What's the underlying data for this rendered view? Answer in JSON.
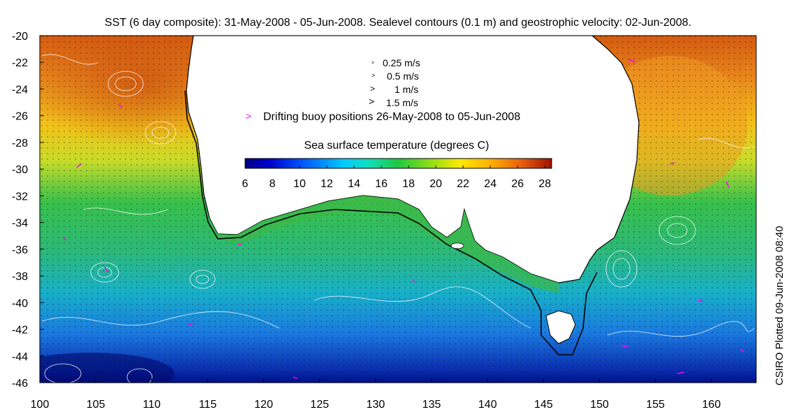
{
  "title": "SST (6 day composite): 31-May-2008 - 05-Jun-2008. Sealevel contours (0.1 m) and geostrophic velocity: 02-Jun-2008.",
  "credit": "CSIRO Plotted 09-Jun-2008 08:40",
  "legend": {
    "vectors": [
      {
        "label": "0.25 m/s"
      },
      {
        "label": "0.5 m/s"
      },
      {
        "label": "1 m/s"
      },
      {
        "label": "1.5 m/s"
      }
    ],
    "buoy_label": "Drifting buoy positions 26-May-2008 to 05-Jun-2008",
    "colorbar_title": "Sea surface temperature (degrees C)",
    "colorbar_ticks": [
      "6",
      "8",
      "10",
      "12",
      "14",
      "16",
      "18",
      "20",
      "22",
      "24",
      "26",
      "28"
    ]
  },
  "axes": {
    "x_ticks": [
      "100",
      "105",
      "110",
      "115",
      "120",
      "125",
      "130",
      "135",
      "140",
      "145",
      "150",
      "155",
      "160"
    ],
    "y_ticks": [
      "-20",
      "-22",
      "-24",
      "-26",
      "-28",
      "-30",
      "-32",
      "-34",
      "-36",
      "-38",
      "-40",
      "-42",
      "-44",
      "-46"
    ],
    "x_range": [
      100,
      164
    ],
    "y_range": [
      -46,
      -20
    ]
  },
  "colors": {
    "land": "#ffffff",
    "coast": "#000000",
    "buoy": "#ff00ff",
    "contour": "#ffffff",
    "colormap": [
      "#00007f",
      "#0000c8",
      "#0040ff",
      "#0090ff",
      "#00d8ff",
      "#10e0b0",
      "#20c840",
      "#60d020",
      "#b0e010",
      "#ffe000",
      "#ffa000",
      "#f06010",
      "#c02000",
      "#800000"
    ]
  }
}
